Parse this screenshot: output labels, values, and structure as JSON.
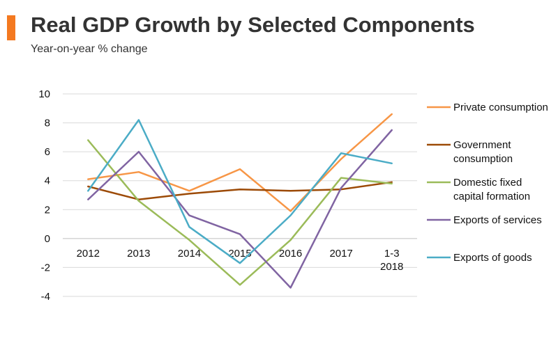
{
  "header": {
    "title": "Real GDP Growth by Selected Components",
    "subtitle": "Year-on-year % change",
    "accent_color": "#f47920"
  },
  "chart_data": {
    "type": "line",
    "title": "Real GDP Growth by Selected Components",
    "subtitle": "Year-on-year % change",
    "xlabel": "",
    "ylabel": "",
    "categories": [
      [
        "2012"
      ],
      [
        "2013"
      ],
      [
        "2014"
      ],
      [
        "2015"
      ],
      [
        "2016"
      ],
      [
        "2017"
      ],
      [
        "1-3",
        "2018"
      ]
    ],
    "ylim": [
      -4,
      10
    ],
    "yticks": [
      -4,
      -2,
      0,
      2,
      4,
      6,
      8,
      10
    ],
    "grid": true,
    "legend_position": "right",
    "series": [
      {
        "name": "Private consumption",
        "legend_lines": [
          "Private consumption"
        ],
        "color": "#f79646",
        "values": [
          4.1,
          4.6,
          3.3,
          4.8,
          1.9,
          5.5,
          8.6
        ]
      },
      {
        "name": "Government consumption",
        "legend_lines": [
          "Government",
          "consumption"
        ],
        "color": "#9c4a06",
        "values": [
          3.6,
          2.7,
          3.1,
          3.4,
          3.3,
          3.4,
          3.9
        ]
      },
      {
        "name": "Domestic fixed capital formation",
        "legend_lines": [
          "Domestic fixed",
          "capital formation"
        ],
        "color": "#9bbb59",
        "values": [
          6.8,
          2.6,
          -0.1,
          -3.2,
          -0.1,
          4.2,
          3.8
        ]
      },
      {
        "name": "Exports of services",
        "legend_lines": [
          "Exports of services"
        ],
        "color": "#8064a2",
        "values": [
          2.7,
          6.0,
          1.6,
          0.3,
          -3.4,
          3.5,
          7.5
        ]
      },
      {
        "name": "Exports of goods",
        "legend_lines": [
          "Exports of goods"
        ],
        "color": "#4bacc6",
        "values": [
          3.3,
          8.2,
          0.8,
          -1.7,
          1.6,
          5.9,
          5.2
        ]
      }
    ]
  }
}
